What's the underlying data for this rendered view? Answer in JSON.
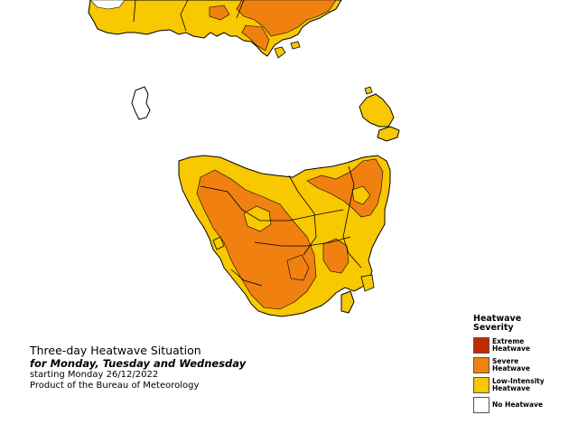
{
  "caption": {
    "title": "Three-day Heatwave Situation",
    "subtitle": "for Monday, Tuesday and Wednesday",
    "date_line": "starting Monday 26/12/2022",
    "credit": "Product of the Bureau of Meteorology"
  },
  "legend": {
    "title": "Heatwave Severity",
    "items": [
      {
        "label": "Extreme Heatwave",
        "color": "#c02a00"
      },
      {
        "label": "Severe Heatwave",
        "color": "#f08010"
      },
      {
        "label": "Low-Intensity Heatwave",
        "color": "#f8c800"
      },
      {
        "label": "No Heatwave",
        "color": "#ffffff"
      }
    ]
  },
  "colors": {
    "background": "#ffffff",
    "coastline": "#000000",
    "low_intensity": "#f8c800",
    "severe": "#f08010"
  },
  "map_regions": {
    "mainland_strip": "low-intensity with severe patches",
    "tasmania": "low-intensity with widespread severe areas",
    "king_island": "no heatwave",
    "flinders_island": "low-intensity"
  }
}
